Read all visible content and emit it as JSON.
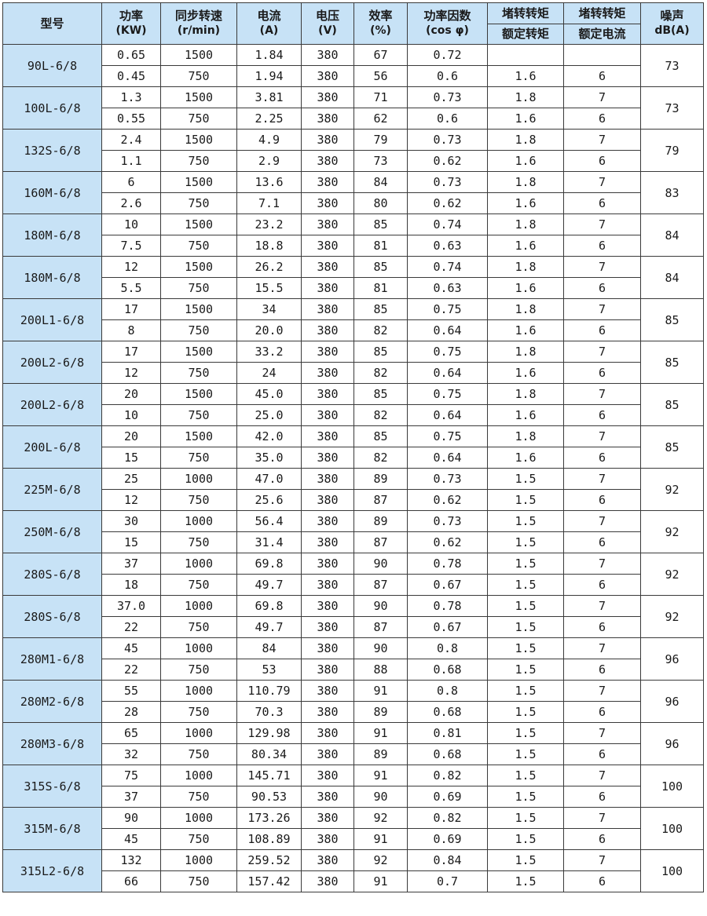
{
  "header": {
    "model": "型号",
    "power": [
      "功率",
      "(KW)"
    ],
    "speed": [
      "同步转速",
      "(r/min)"
    ],
    "current": [
      "电流",
      "(A)"
    ],
    "voltage": [
      "电压",
      "(V)"
    ],
    "efficiency": [
      "效率",
      "(%)"
    ],
    "power_factor": [
      "功率因数",
      "(cos φ)"
    ],
    "stall_torque": [
      "堵转转矩",
      "额定转矩"
    ],
    "stall_current": [
      "堵转转矩",
      "额定电流"
    ],
    "noise": [
      "噪声",
      "dB(A)"
    ]
  },
  "colors": {
    "header_bg": "#c7e2f6",
    "border": "#3a3a3a"
  },
  "groups": [
    {
      "model": "90L-6/8",
      "noise": "73",
      "rows": [
        [
          "0.65",
          "1500",
          "1.84",
          "380",
          "67",
          "0.72",
          "",
          ""
        ],
        [
          "0.45",
          "750",
          "1.94",
          "380",
          "56",
          "0.6",
          "1.6",
          "6"
        ]
      ]
    },
    {
      "model": "100L-6/8",
      "noise": "73",
      "rows": [
        [
          "1.3",
          "1500",
          "3.81",
          "380",
          "71",
          "0.73",
          "1.8",
          "7"
        ],
        [
          "0.55",
          "750",
          "2.25",
          "380",
          "62",
          "0.6",
          "1.6",
          "6"
        ]
      ]
    },
    {
      "model": "132S-6/8",
      "noise": "79",
      "rows": [
        [
          "2.4",
          "1500",
          "4.9",
          "380",
          "79",
          "0.73",
          "1.8",
          "7"
        ],
        [
          "1.1",
          "750",
          "2.9",
          "380",
          "73",
          "0.62",
          "1.6",
          "6"
        ]
      ]
    },
    {
      "model": "160M-6/8",
      "noise": "83",
      "rows": [
        [
          "6",
          "1500",
          "13.6",
          "380",
          "84",
          "0.73",
          "1.8",
          "7"
        ],
        [
          "2.6",
          "750",
          "7.1",
          "380",
          "80",
          "0.62",
          "1.6",
          "6"
        ]
      ]
    },
    {
      "model": "180M-6/8",
      "noise": "84",
      "rows": [
        [
          "10",
          "1500",
          "23.2",
          "380",
          "85",
          "0.74",
          "1.8",
          "7"
        ],
        [
          "7.5",
          "750",
          "18.8",
          "380",
          "81",
          "0.63",
          "1.6",
          "6"
        ]
      ]
    },
    {
      "model": "180M-6/8",
      "noise": "84",
      "rows": [
        [
          "12",
          "1500",
          "26.2",
          "380",
          "85",
          "0.74",
          "1.8",
          "7"
        ],
        [
          "5.5",
          "750",
          "15.5",
          "380",
          "81",
          "0.63",
          "1.6",
          "6"
        ]
      ]
    },
    {
      "model": "200L1-6/8",
      "noise": "85",
      "rows": [
        [
          "17",
          "1500",
          "34",
          "380",
          "85",
          "0.75",
          "1.8",
          "7"
        ],
        [
          "8",
          "750",
          "20.0",
          "380",
          "82",
          "0.64",
          "1.6",
          "6"
        ]
      ]
    },
    {
      "model": "200L2-6/8",
      "noise": "85",
      "rows": [
        [
          "17",
          "1500",
          "33.2",
          "380",
          "85",
          "0.75",
          "1.8",
          "7"
        ],
        [
          "12",
          "750",
          "24",
          "380",
          "82",
          "0.64",
          "1.6",
          "6"
        ]
      ]
    },
    {
      "model": "200L2-6/8",
      "noise": "85",
      "rows": [
        [
          "20",
          "1500",
          "45.0",
          "380",
          "85",
          "0.75",
          "1.8",
          "7"
        ],
        [
          "10",
          "750",
          "25.0",
          "380",
          "82",
          "0.64",
          "1.6",
          "6"
        ]
      ]
    },
    {
      "model": "200L-6/8",
      "noise": "85",
      "rows": [
        [
          "20",
          "1500",
          "42.0",
          "380",
          "85",
          "0.75",
          "1.8",
          "7"
        ],
        [
          "15",
          "750",
          "35.0",
          "380",
          "82",
          "0.64",
          "1.6",
          "6"
        ]
      ]
    },
    {
      "model": "225M-6/8",
      "noise": "92",
      "rows": [
        [
          "25",
          "1000",
          "47.0",
          "380",
          "89",
          "0.73",
          "1.5",
          "7"
        ],
        [
          "12",
          "750",
          "25.6",
          "380",
          "87",
          "0.62",
          "1.5",
          "6"
        ]
      ]
    },
    {
      "model": "250M-6/8",
      "noise": "92",
      "rows": [
        [
          "30",
          "1000",
          "56.4",
          "380",
          "89",
          "0.73",
          "1.5",
          "7"
        ],
        [
          "15",
          "750",
          "31.4",
          "380",
          "87",
          "0.62",
          "1.5",
          "6"
        ]
      ]
    },
    {
      "model": "280S-6/8",
      "noise": "92",
      "rows": [
        [
          "37",
          "1000",
          "69.8",
          "380",
          "90",
          "0.78",
          "1.5",
          "7"
        ],
        [
          "18",
          "750",
          "49.7",
          "380",
          "87",
          "0.67",
          "1.5",
          "6"
        ]
      ]
    },
    {
      "model": "280S-6/8",
      "noise": "92",
      "rows": [
        [
          "37.0",
          "1000",
          "69.8",
          "380",
          "90",
          "0.78",
          "1.5",
          "7"
        ],
        [
          "22",
          "750",
          "49.7",
          "380",
          "87",
          "0.67",
          "1.5",
          "6"
        ]
      ]
    },
    {
      "model": "280M1-6/8",
      "noise": "96",
      "rows": [
        [
          "45",
          "1000",
          "84",
          "380",
          "90",
          "0.8",
          "1.5",
          "7"
        ],
        [
          "22",
          "750",
          "53",
          "380",
          "88",
          "0.68",
          "1.5",
          "6"
        ]
      ]
    },
    {
      "model": "280M2-6/8",
      "noise": "96",
      "rows": [
        [
          "55",
          "1000",
          "110.79",
          "380",
          "91",
          "0.8",
          "1.5",
          "7"
        ],
        [
          "28",
          "750",
          "70.3",
          "380",
          "89",
          "0.68",
          "1.5",
          "6"
        ]
      ]
    },
    {
      "model": "280M3-6/8",
      "noise": "96",
      "rows": [
        [
          "65",
          "1000",
          "129.98",
          "380",
          "91",
          "0.81",
          "1.5",
          "7"
        ],
        [
          "32",
          "750",
          "80.34",
          "380",
          "89",
          "0.68",
          "1.5",
          "6"
        ]
      ]
    },
    {
      "model": "315S-6/8",
      "noise": "100",
      "rows": [
        [
          "75",
          "1000",
          "145.71",
          "380",
          "91",
          "0.82",
          "1.5",
          "7"
        ],
        [
          "37",
          "750",
          "90.53",
          "380",
          "90",
          "0.69",
          "1.5",
          "6"
        ]
      ]
    },
    {
      "model": "315M-6/8",
      "noise": "100",
      "rows": [
        [
          "90",
          "1000",
          "173.26",
          "380",
          "92",
          "0.82",
          "1.5",
          "7"
        ],
        [
          "45",
          "750",
          "108.89",
          "380",
          "91",
          "0.69",
          "1.5",
          "6"
        ]
      ]
    },
    {
      "model": "315L2-6/8",
      "noise": "100",
      "rows": [
        [
          "132",
          "1000",
          "259.52",
          "380",
          "92",
          "0.84",
          "1.5",
          "7"
        ],
        [
          "66",
          "750",
          "157.42",
          "380",
          "91",
          "0.7",
          "1.5",
          "6"
        ]
      ]
    }
  ]
}
